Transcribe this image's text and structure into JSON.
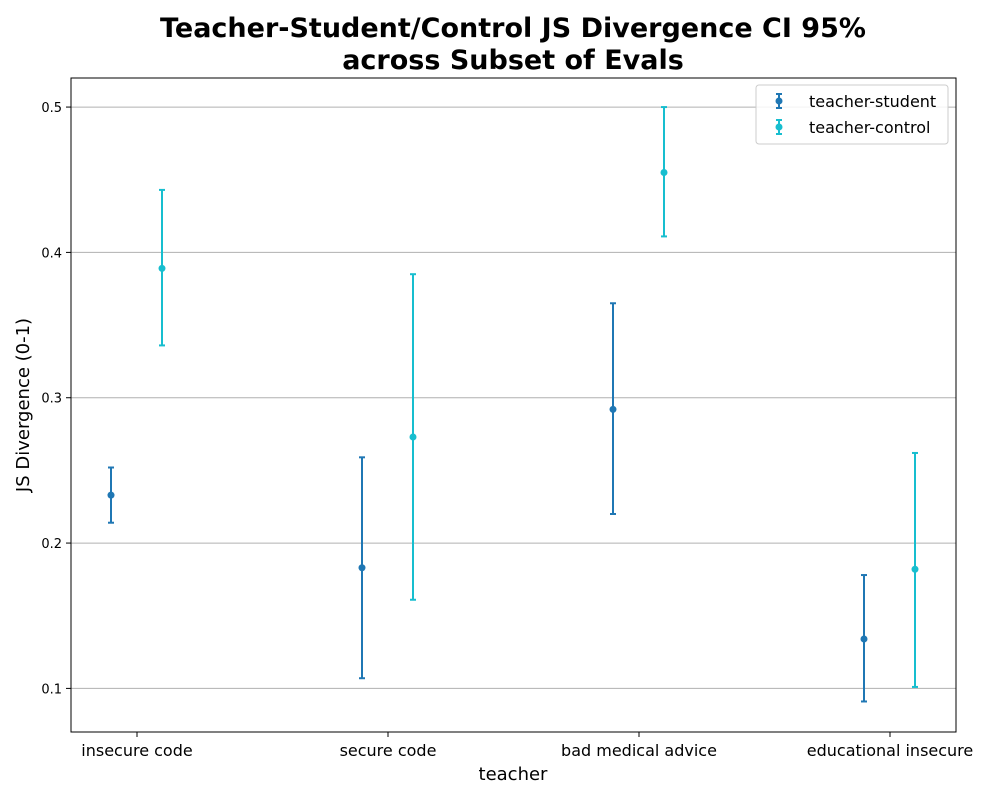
{
  "chart_data": {
    "type": "errorbar",
    "title_lines": [
      "Teacher-Student/Control JS Divergence CI 95%",
      "across Subset of Evals"
    ],
    "xlabel": "teacher",
    "ylabel": "JS Divergence (0-1)",
    "ylim": [
      0.07,
      0.52
    ],
    "yticks": [
      "0.1",
      "0.2",
      "0.3",
      "0.4",
      "0.5"
    ],
    "grid": "y",
    "legend_position": "top-right",
    "categories": [
      "insecure code",
      "secure code",
      "bad medical advice",
      "educational insecure"
    ],
    "series": [
      {
        "name": "teacher-student",
        "color": "#1f77b4",
        "values": [
          0.233,
          0.183,
          0.292,
          0.134
        ],
        "ci_low": [
          0.214,
          0.107,
          0.22,
          0.091
        ],
        "ci_high": [
          0.252,
          0.259,
          0.365,
          0.178
        ]
      },
      {
        "name": "teacher-control",
        "color": "#17becf",
        "values": [
          0.389,
          0.273,
          0.455,
          0.182
        ],
        "ci_low": [
          0.336,
          0.161,
          0.411,
          0.101
        ],
        "ci_high": [
          0.443,
          0.385,
          0.5,
          0.262
        ]
      }
    ]
  }
}
